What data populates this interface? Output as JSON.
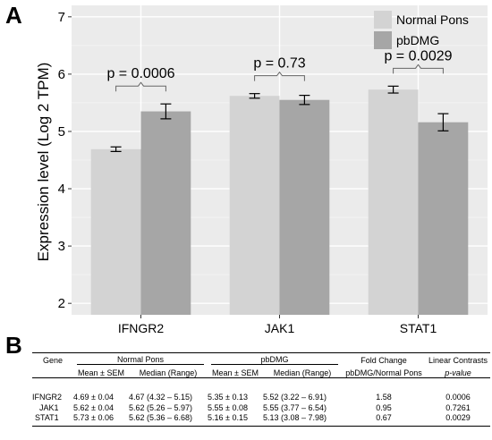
{
  "panel_labels": {
    "a": "A",
    "b": "B"
  },
  "chart_data": {
    "type": "bar",
    "categories": [
      "IFNGR2",
      "JAK1",
      "STAT1"
    ],
    "series": [
      {
        "name": "Normal Pons",
        "color": "#d3d3d3",
        "values": [
          4.69,
          5.62,
          5.73
        ],
        "sem": [
          0.04,
          0.04,
          0.06
        ]
      },
      {
        "name": "pbDMG",
        "color": "#a6a6a6",
        "values": [
          5.35,
          5.55,
          5.16
        ],
        "sem": [
          0.13,
          0.08,
          0.15
        ]
      }
    ],
    "annotations": [
      "p = 0.0006",
      "p = 0.73",
      "p = 0.0029"
    ],
    "xlabel": "",
    "ylabel": "Expression level (Log 2 TPM)",
    "ylim": [
      1.8,
      7.2
    ],
    "yticks": [
      "2",
      "3",
      "4",
      "5",
      "6",
      "7"
    ],
    "legend_position": "top-right",
    "grid": true
  },
  "table": {
    "group_headers": [
      "Gene",
      "Normal Pons",
      "pbDMG",
      "Fold Change",
      "Linear Contrasts"
    ],
    "sub_headers": [
      "Mean ± SEM",
      "Median (Range)",
      "Mean ± SEM",
      "Median (Range)",
      "pbDMG/Normal Pons",
      "p-value"
    ],
    "rows": [
      [
        "IFNGR2",
        "4.69 ± 0.04",
        "4.67 (4.32 – 5.15)",
        "5.35 ± 0.13",
        "5.52 (3.22 – 6.91)",
        "1.58",
        "0.0006"
      ],
      [
        "JAK1",
        "5.62 ± 0.04",
        "5.62 (5.26 – 5.97)",
        "5.55 ± 0.08",
        "5.55 (3.77 – 6.54)",
        "0.95",
        "0.7261"
      ],
      [
        "STAT1",
        "5.73 ± 0.06",
        "5.62 (5.36 – 6.68)",
        "5.16 ± 0.15",
        "5.13 (3.08 – 7.98)",
        "0.67",
        "0.0029"
      ]
    ]
  }
}
